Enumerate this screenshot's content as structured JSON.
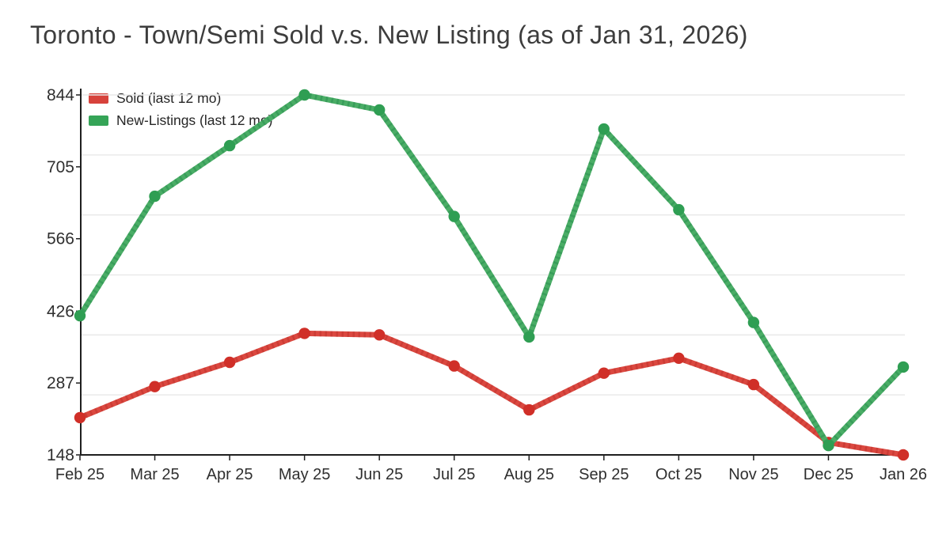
{
  "title": "Toronto - Town/Semi Sold v.s. New Listing (as of Jan 31, 2026)",
  "colors": {
    "sold_line": "#db4840",
    "sold_stripe": "#b32b24",
    "sold_marker": "#d02f28",
    "new_line": "#4aad66",
    "new_stripe": "#1e8448",
    "new_marker": "#2f9e53",
    "grid": "#e9e9e9",
    "axis": "#1f1f1f",
    "tick_text": "#2f2f2f",
    "title_text": "#3d3d3d"
  },
  "legend": [
    {
      "label": "Sold (last 12 mo)",
      "color": "#d7423b"
    },
    {
      "label": "New-Listings (last 12 mo)",
      "color": "#35a457"
    }
  ],
  "chart_data": {
    "type": "line",
    "title": "Toronto - Town/Semi Sold v.s. New Listing (as of Jan 31, 2026)",
    "x": [
      "Feb 25",
      "Mar 25",
      "Apr 25",
      "May 25",
      "Jun 25",
      "Jul 25",
      "Aug 25",
      "Sep 25",
      "Oct 25",
      "Nov 25",
      "Dec 25",
      "Jan 26"
    ],
    "series": [
      {
        "key": "sold",
        "name": "Sold (last 12 mo)",
        "values": [
          220,
          280,
          327,
          383,
          380,
          320,
          235,
          306,
          335,
          284,
          172,
          148
        ]
      },
      {
        "key": "new-listings",
        "name": "New-Listings (last 12 mo)",
        "values": [
          417,
          648,
          746,
          844,
          815,
          609,
          376,
          778,
          622,
          404,
          166,
          318
        ]
      }
    ],
    "yticks": [
      148,
      287,
      426,
      566,
      705,
      844
    ],
    "ylim": [
      148,
      844
    ],
    "xlabel": "",
    "ylabel": "",
    "grid": "horizontal only, 6 equal divisions of plot height (not aligned to y tick labels)",
    "legend_position": "top-left inside plot area"
  }
}
